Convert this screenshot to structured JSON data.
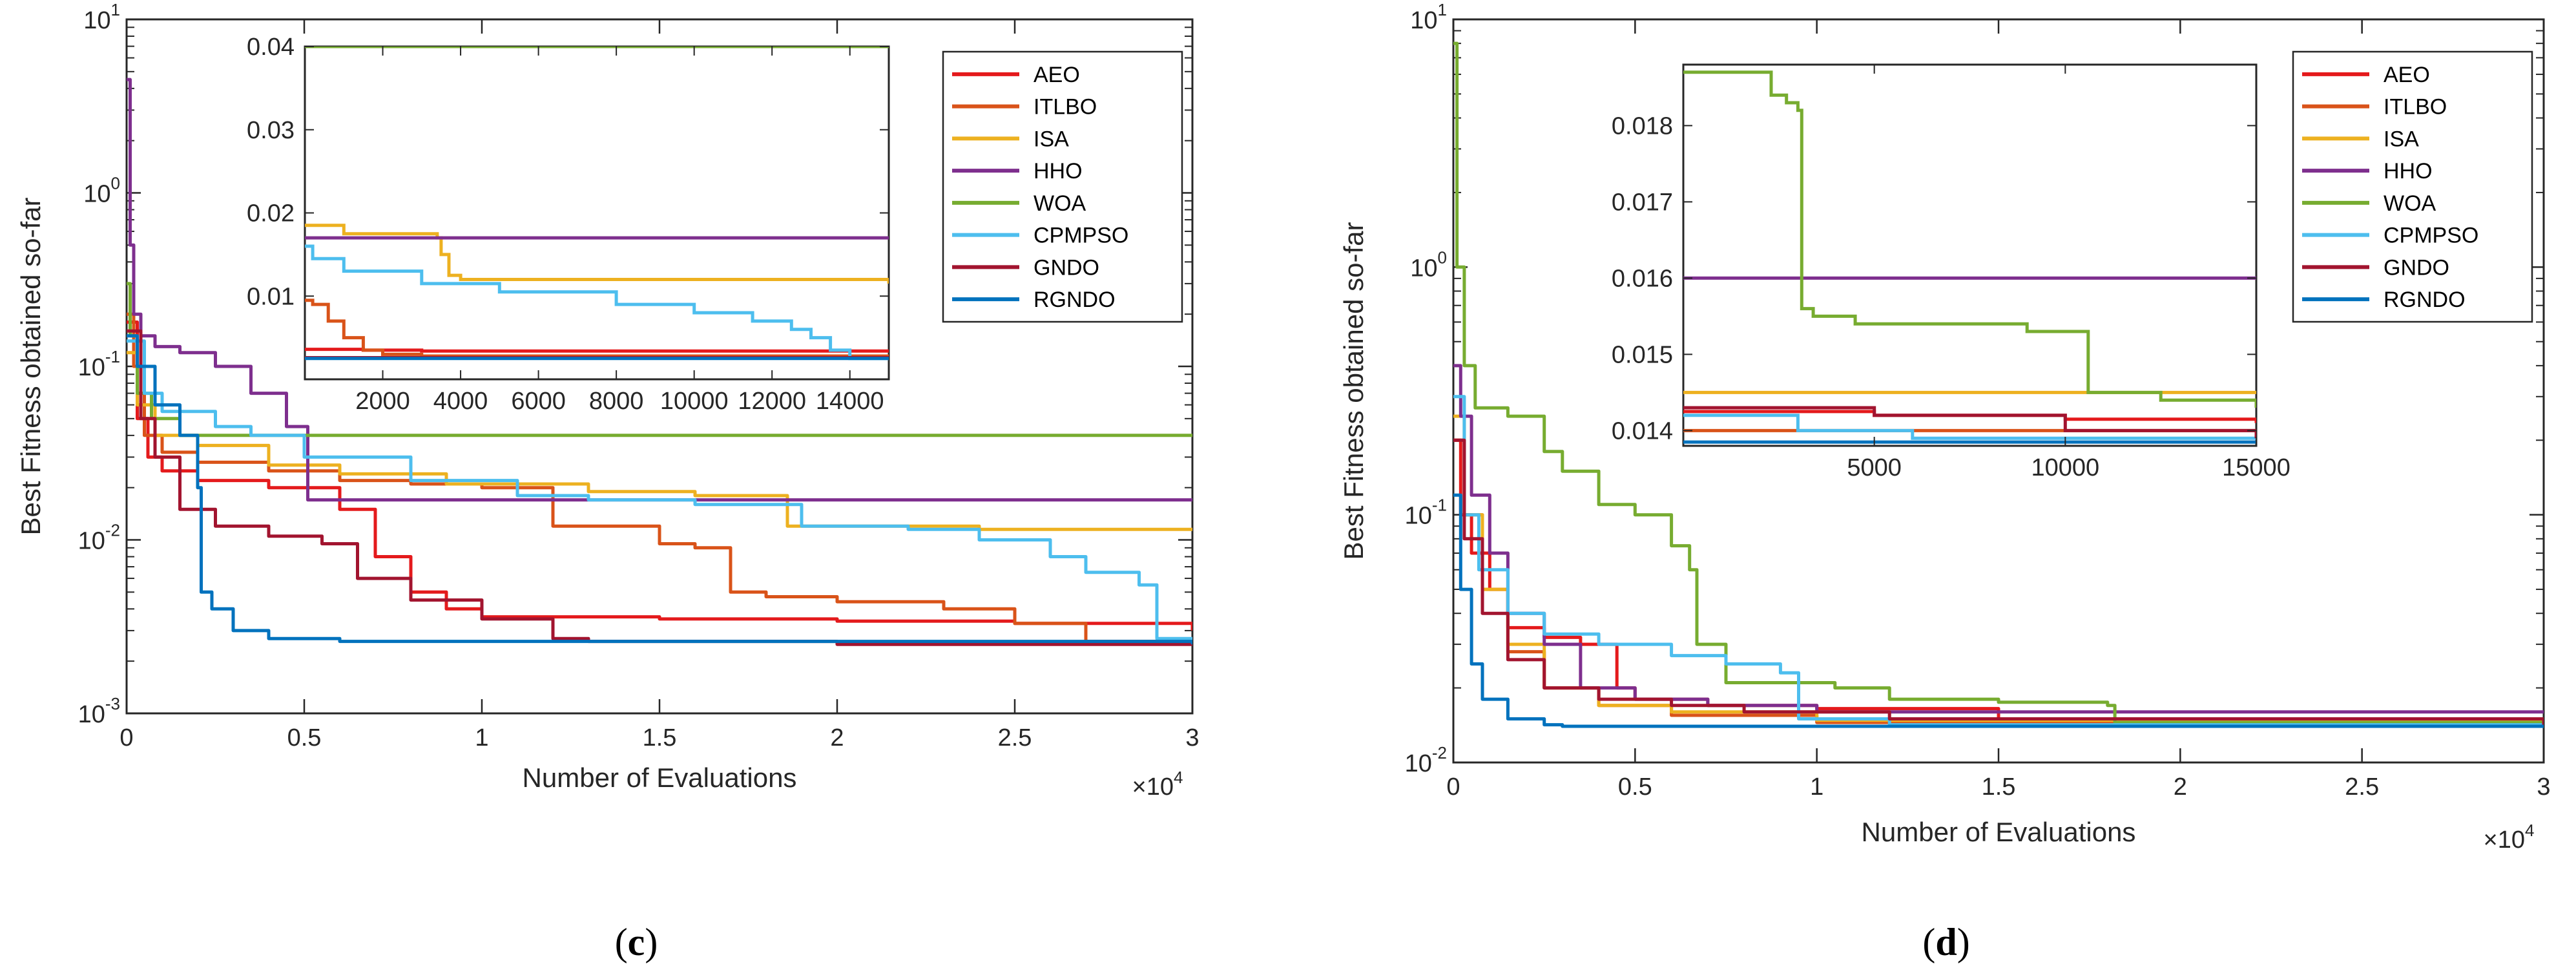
{
  "chart_data": [
    {
      "type": "line",
      "panel_label": "(c)",
      "caption_letter": "c",
      "xlabel": "Number of Evaluations",
      "ylabel": "Best Fitness obtained so-far",
      "xscale_note": "×10^4",
      "xlim": [
        0,
        30000
      ],
      "ylim": [
        0.001,
        10
      ],
      "yscale": "log",
      "xticks": [
        0,
        5000,
        10000,
        15000,
        20000,
        25000,
        30000
      ],
      "xtick_labels": [
        "0",
        "0.5",
        "1",
        "1.5",
        "2",
        "2.5",
        "3"
      ],
      "yticks": [
        0.001,
        0.01,
        0.1,
        1,
        10
      ],
      "ytick_labels": [
        [
          "10",
          "-3"
        ],
        [
          "10",
          "-2"
        ],
        [
          "10",
          "-1"
        ],
        [
          "10",
          "0"
        ],
        [
          "10",
          "1"
        ]
      ],
      "legend_position": "top-right",
      "series": [
        {
          "name": "AEO",
          "color": "#e41a1c",
          "x": [
            0,
            300,
            600,
            1000,
            2000,
            4000,
            6000,
            7000,
            8000,
            9000,
            10000,
            15000,
            20000,
            25000,
            30000
          ],
          "y": [
            0.18,
            0.05,
            0.03,
            0.025,
            0.022,
            0.02,
            0.015,
            0.008,
            0.005,
            0.004,
            0.0036,
            0.0035,
            0.0034,
            0.0033,
            0.003
          ]
        },
        {
          "name": "ITLBO",
          "color": "#d95319",
          "x": [
            0,
            200,
            500,
            1000,
            2000,
            4000,
            6000,
            8000,
            10000,
            12000,
            15000,
            16000,
            17000,
            18000,
            20000,
            23000,
            25000,
            27000,
            30000
          ],
          "y": [
            0.2,
            0.1,
            0.04,
            0.032,
            0.028,
            0.025,
            0.022,
            0.021,
            0.02,
            0.012,
            0.0095,
            0.009,
            0.005,
            0.0047,
            0.0044,
            0.004,
            0.0033,
            0.0026,
            0.0025
          ]
        },
        {
          "name": "ISA",
          "color": "#edb120",
          "x": [
            0,
            300,
            800,
            2000,
            4000,
            6000,
            9000,
            13000,
            16000,
            18000,
            18600,
            19000,
            24000,
            30000
          ],
          "y": [
            0.12,
            0.06,
            0.04,
            0.035,
            0.027,
            0.024,
            0.021,
            0.019,
            0.018,
            0.018,
            0.012,
            0.012,
            0.0115,
            0.0115
          ]
        },
        {
          "name": "HHO",
          "color": "#7e2f8e",
          "x": [
            0,
            100,
            200,
            400,
            800,
            1500,
            2500,
            3500,
            4500,
            5000,
            5100,
            8000,
            12000,
            30000
          ],
          "y": [
            4.5,
            0.5,
            0.2,
            0.15,
            0.13,
            0.12,
            0.1,
            0.07,
            0.045,
            0.045,
            0.017,
            0.017,
            0.017,
            0.017
          ]
        },
        {
          "name": "WOA",
          "color": "#77ac30",
          "x": [
            0,
            100,
            300,
            700,
            1500,
            30000
          ],
          "y": [
            0.3,
            0.15,
            0.07,
            0.05,
            0.04,
            0.04
          ]
        },
        {
          "name": "CPMPSO",
          "color": "#4dbeee",
          "x": [
            0,
            500,
            1000,
            2500,
            3500,
            5000,
            8000,
            11000,
            13000,
            16000,
            19000,
            22000,
            24000,
            26000,
            27000,
            28500,
            29000,
            30000
          ],
          "y": [
            0.14,
            0.07,
            0.055,
            0.045,
            0.04,
            0.03,
            0.022,
            0.018,
            0.017,
            0.016,
            0.012,
            0.0115,
            0.01,
            0.008,
            0.0065,
            0.0055,
            0.0027,
            0.0025
          ]
        },
        {
          "name": "GNDO",
          "color": "#a2142f",
          "x": [
            0,
            400,
            800,
            1500,
            2500,
            4000,
            5500,
            6500,
            8000,
            10000,
            12000,
            13000,
            20000,
            30000
          ],
          "y": [
            0.16,
            0.05,
            0.03,
            0.015,
            0.012,
            0.0105,
            0.0095,
            0.006,
            0.0045,
            0.0035,
            0.0027,
            0.0026,
            0.0025,
            0.0025
          ]
        },
        {
          "name": "RGNDO",
          "color": "#0072bd",
          "x": [
            0,
            300,
            800,
            1500,
            2000,
            2100,
            2400,
            3000,
            4000,
            6000,
            30000
          ],
          "y": [
            0.15,
            0.1,
            0.06,
            0.04,
            0.02,
            0.005,
            0.004,
            0.003,
            0.0027,
            0.0026,
            0.0025
          ]
        }
      ],
      "inset": {
        "xlim": [
          0,
          15000
        ],
        "ylim": [
          0,
          0.04
        ],
        "xticks": [
          2000,
          4000,
          6000,
          8000,
          10000,
          12000,
          14000
        ],
        "xtick_labels": [
          "2000",
          "4000",
          "6000",
          "8000",
          "10000",
          "12000",
          "14000"
        ],
        "yticks": [
          0.01,
          0.02,
          0.03,
          0.04
        ],
        "ytick_labels": [
          "0.01",
          "0.02",
          "0.03",
          "0.04"
        ],
        "series": [
          {
            "name": "AEO",
            "x": [
              0,
              1500,
              3000,
              15000
            ],
            "y": [
              0.0036,
              0.0035,
              0.0034,
              0.0032
            ]
          },
          {
            "name": "ITLBO",
            "x": [
              0,
              200,
              600,
              1000,
              1500,
              2000,
              3000,
              15000
            ],
            "y": [
              0.0095,
              0.009,
              0.007,
              0.005,
              0.0035,
              0.003,
              0.0028,
              0.0025
            ]
          },
          {
            "name": "ISA",
            "x": [
              0,
              1000,
              3400,
              3500,
              3700,
              4000,
              15000
            ],
            "y": [
              0.0185,
              0.0175,
              0.017,
              0.015,
              0.0125,
              0.012,
              0.0115
            ]
          },
          {
            "name": "HHO",
            "x": [
              0,
              15000
            ],
            "y": [
              0.017,
              0.017
            ]
          },
          {
            "name": "WOA",
            "x": [
              0,
              15000
            ],
            "y": [
              0.04,
              0.04
            ]
          },
          {
            "name": "CPMPSO",
            "x": [
              0,
              200,
              1000,
              3000,
              5000,
              8000,
              10000,
              11500,
              12500,
              13000,
              13500,
              14000,
              15000
            ],
            "y": [
              0.016,
              0.0145,
              0.013,
              0.0115,
              0.0105,
              0.009,
              0.008,
              0.007,
              0.006,
              0.005,
              0.0035,
              0.0025,
              0.0025
            ]
          },
          {
            "name": "GNDO",
            "x": [
              0,
              15000
            ],
            "y": [
              0.0026,
              0.0025
            ]
          },
          {
            "name": "RGNDO",
            "x": [
              0,
              15000
            ],
            "y": [
              0.0025,
              0.0025
            ]
          }
        ]
      }
    },
    {
      "type": "line",
      "panel_label": "(d)",
      "caption_letter": "d",
      "xlabel": "Number of Evaluations",
      "ylabel": "Best Fitness obtained so-far",
      "xscale_note": "×10^4",
      "xlim": [
        0,
        30000
      ],
      "ylim": [
        0.01,
        10
      ],
      "yscale": "log",
      "xticks": [
        0,
        5000,
        10000,
        15000,
        20000,
        25000,
        30000
      ],
      "xtick_labels": [
        "0",
        "0.5",
        "1",
        "1.5",
        "2",
        "2.5",
        "3"
      ],
      "yticks": [
        0.01,
        0.1,
        1,
        10
      ],
      "ytick_labels": [
        [
          "10",
          "-2"
        ],
        [
          "10",
          "-1"
        ],
        [
          "10",
          "0"
        ],
        [
          "10",
          "1"
        ]
      ],
      "legend_position": "top-right",
      "series": [
        {
          "name": "AEO",
          "color": "#e41a1c",
          "x": [
            0,
            200,
            500,
            1000,
            1500,
            2500,
            3500,
            4500,
            5000,
            7000,
            10000,
            15000,
            20000,
            30000
          ],
          "y": [
            0.2,
            0.1,
            0.07,
            0.05,
            0.035,
            0.032,
            0.03,
            0.02,
            0.018,
            0.017,
            0.0165,
            0.015,
            0.0145,
            0.0142
          ]
        },
        {
          "name": "ITLBO",
          "color": "#d95319",
          "x": [
            0,
            300,
            800,
            1500,
            2500,
            4000,
            6000,
            10000,
            30000
          ],
          "y": [
            0.2,
            0.1,
            0.05,
            0.028,
            0.02,
            0.017,
            0.0155,
            0.0145,
            0.014
          ]
        },
        {
          "name": "ISA",
          "color": "#edb120",
          "x": [
            0,
            300,
            800,
            1500,
            2500,
            4000,
            6000,
            10000,
            30000
          ],
          "y": [
            0.25,
            0.1,
            0.05,
            0.03,
            0.02,
            0.017,
            0.016,
            0.0148,
            0.0145
          ]
        },
        {
          "name": "HHO",
          "color": "#7e2f8e",
          "x": [
            0,
            200,
            500,
            1000,
            1500,
            2500,
            3500,
            5000,
            7000,
            10000,
            30000
          ],
          "y": [
            0.4,
            0.25,
            0.12,
            0.07,
            0.04,
            0.03,
            0.02,
            0.018,
            0.017,
            0.016,
            0.016
          ]
        },
        {
          "name": "WOA",
          "color": "#77ac30",
          "x": [
            0,
            100,
            300,
            600,
            1500,
            2500,
            3000,
            4000,
            5000,
            6000,
            6500,
            6700,
            7500,
            9000,
            10500,
            12000,
            15000,
            18000,
            18200,
            30000
          ],
          "y": [
            8,
            1,
            0.4,
            0.27,
            0.25,
            0.18,
            0.15,
            0.11,
            0.1,
            0.075,
            0.06,
            0.03,
            0.021,
            0.021,
            0.02,
            0.018,
            0.0175,
            0.017,
            0.0145,
            0.014
          ]
        },
        {
          "name": "CPMPSO",
          "color": "#4dbeee",
          "x": [
            0,
            300,
            700,
            1500,
            2500,
            4000,
            6000,
            7500,
            9000,
            9500,
            12000,
            30000
          ],
          "y": [
            0.3,
            0.1,
            0.06,
            0.04,
            0.033,
            0.03,
            0.027,
            0.025,
            0.023,
            0.015,
            0.0142,
            0.014
          ]
        },
        {
          "name": "GNDO",
          "color": "#a2142f",
          "x": [
            0,
            300,
            800,
            1500,
            2500,
            4000,
            6000,
            8000,
            12000,
            30000
          ],
          "y": [
            0.2,
            0.08,
            0.04,
            0.026,
            0.02,
            0.018,
            0.017,
            0.016,
            0.015,
            0.0138
          ]
        },
        {
          "name": "RGNDO",
          "color": "#0072bd",
          "x": [
            0,
            200,
            500,
            800,
            1500,
            2500,
            3000,
            30000
          ],
          "y": [
            0.12,
            0.05,
            0.025,
            0.018,
            0.015,
            0.0142,
            0.014,
            0.0138
          ]
        }
      ],
      "inset": {
        "xlim": [
          0,
          15000
        ],
        "ylim": [
          0.0138,
          0.0188
        ],
        "xticks": [
          5000,
          10000,
          15000
        ],
        "xtick_labels": [
          "5000",
          "10000",
          "15000"
        ],
        "yticks": [
          0.014,
          0.015,
          0.016,
          0.017,
          0.018
        ],
        "ytick_labels": [
          "0.014",
          "0.015",
          "0.016",
          "0.017",
          "0.018"
        ],
        "series": [
          {
            "name": "AEO",
            "x": [
              0,
              5000,
              10000,
              15000
            ],
            "y": [
              0.01425,
              0.0142,
              0.01415,
              0.0141
            ]
          },
          {
            "name": "ITLBO",
            "x": [
              0,
              15000
            ],
            "y": [
              0.014,
              0.01395
            ]
          },
          {
            "name": "ISA",
            "x": [
              0,
              15000
            ],
            "y": [
              0.0145,
              0.0145
            ]
          },
          {
            "name": "HHO",
            "x": [
              0,
              15000
            ],
            "y": [
              0.016,
              0.016
            ]
          },
          {
            "name": "WOA",
            "x": [
              0,
              2000,
              2300,
              2700,
              3000,
              3100,
              3400,
              4500,
              7000,
              9000,
              10500,
              10600,
              12500,
              15000
            ],
            "y": [
              0.0187,
              0.0187,
              0.0184,
              0.0183,
              0.0182,
              0.0156,
              0.0155,
              0.0154,
              0.0154,
              0.0153,
              0.0153,
              0.0145,
              0.0144,
              0.0143
            ]
          },
          {
            "name": "CPMPSO",
            "x": [
              0,
              3000,
              6000,
              15000
            ],
            "y": [
              0.0142,
              0.014,
              0.0139,
              0.0139
            ]
          },
          {
            "name": "GNDO",
            "x": [
              0,
              5000,
              10000,
              15000
            ],
            "y": [
              0.0143,
              0.0142,
              0.014,
              0.0139
            ]
          },
          {
            "name": "RGNDO",
            "x": [
              0,
              15000
            ],
            "y": [
              0.01385,
              0.01385
            ]
          }
        ]
      }
    }
  ]
}
